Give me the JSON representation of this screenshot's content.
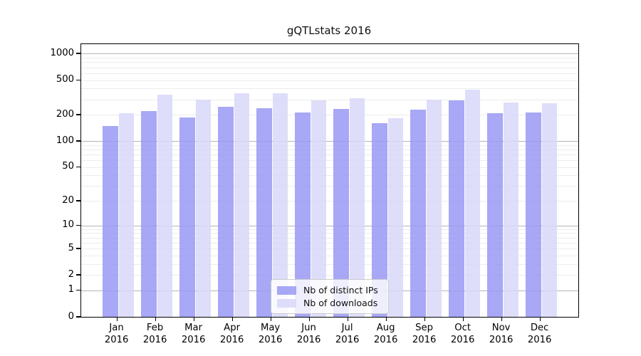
{
  "chart_data": {
    "type": "bar",
    "title": "gQTLstats 2016",
    "x_months": [
      "Jan",
      "Feb",
      "Mar",
      "Apr",
      "May",
      "Jun",
      "Jul",
      "Aug",
      "Sep",
      "Oct",
      "Nov",
      "Dec"
    ],
    "x_year_label": "2016",
    "series": [
      {
        "name": "Nb of distinct IPs",
        "color": "#a8a8f6",
        "color_rgba": "rgba(153,153,245,0.85)",
        "values": [
          148,
          221,
          188,
          249,
          237,
          212,
          236,
          160,
          231,
          292,
          209,
          212
        ]
      },
      {
        "name": "Nb of downloads",
        "color": "#ddddf9",
        "color_rgba": "rgba(216,216,249,0.85)",
        "values": [
          210,
          340,
          300,
          351,
          355,
          291,
          313,
          182,
          296,
          390,
          279,
          270
        ]
      }
    ],
    "y_ticks": [
      0,
      1,
      2,
      5,
      10,
      20,
      50,
      100,
      200,
      500,
      1000
    ],
    "y_tick_labels": [
      "0",
      "1",
      "2",
      "5",
      "10",
      "20",
      "50",
      "100",
      "200",
      "500",
      "1000"
    ],
    "y_scale": "log1p",
    "ylim": [
      0,
      1260
    ],
    "grid": true,
    "legend_position": "lower center"
  },
  "style": {
    "grid_major_color": "#b4b4b4",
    "grid_minor_color": "#ececec",
    "axis_color": "#000000",
    "background_color": "#ffffff"
  }
}
